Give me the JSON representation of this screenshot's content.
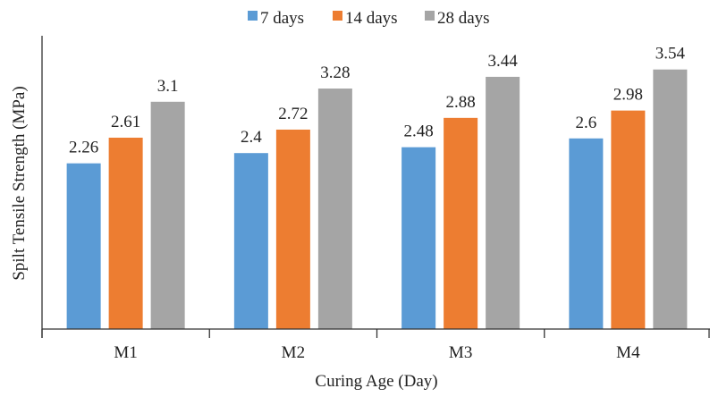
{
  "chart_data": {
    "type": "bar",
    "title": "",
    "xlabel": "Curing Age (Day)",
    "ylabel": "Spilt Tensile Strength (MPa)",
    "categories": [
      "M1",
      "M2",
      "M3",
      "M4"
    ],
    "series": [
      {
        "name": "7 days",
        "color": "#5B9BD5",
        "values": [
          2.26,
          2.4,
          2.48,
          2.6
        ],
        "labels": [
          "2.26",
          "2.4",
          "2.48",
          "2.6"
        ]
      },
      {
        "name": "14 days",
        "color": "#ED7D31",
        "values": [
          2.61,
          2.72,
          2.88,
          2.98
        ],
        "labels": [
          "2.61",
          "2.72",
          "2.88",
          "2.98"
        ]
      },
      {
        "name": "28 days",
        "color": "#A5A5A5",
        "values": [
          3.1,
          3.28,
          3.44,
          3.54
        ],
        "labels": [
          "3.1",
          "3.28",
          "3.44",
          "3.54"
        ]
      }
    ],
    "ylim": [
      0,
      4
    ],
    "grid": false,
    "legend": "top"
  }
}
